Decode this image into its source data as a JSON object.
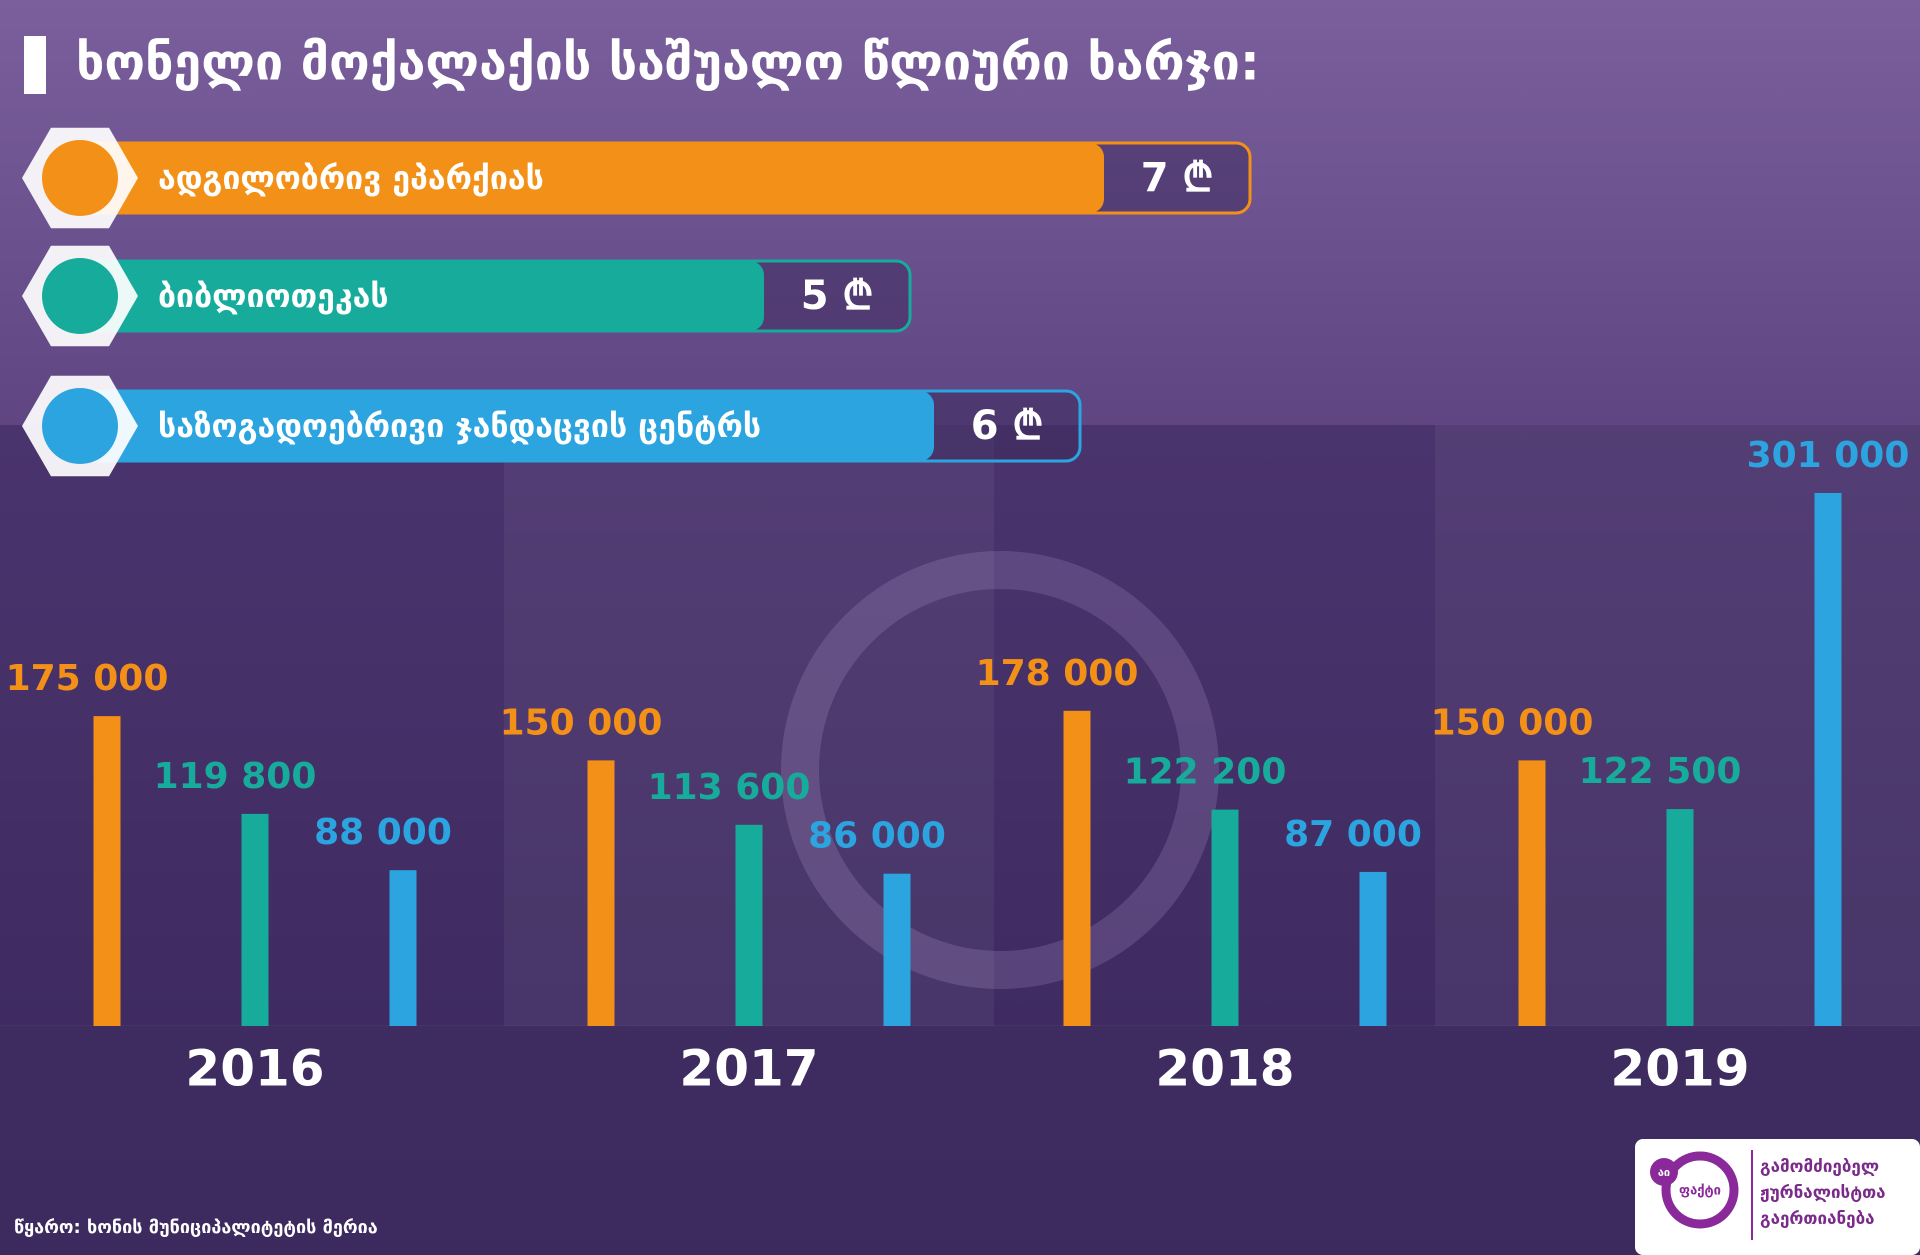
{
  "chart_data": {
    "type": "bar",
    "title": "ხონელი მოქალაქის საშუალო წლიური ხარჯი:",
    "categories": [
      "2016",
      "2017",
      "2018",
      "2019"
    ],
    "series": [
      {
        "name": "ადგილობრივ ეპარქიას",
        "color": "#f39018",
        "values": [
          175000,
          150000,
          178000,
          150000
        ],
        "value_labels": [
          "175 000",
          "150 000",
          "178 000",
          "150 000"
        ],
        "per_citizen": 7,
        "per_citizen_label": "7 ₾"
      },
      {
        "name": "ბიბლიოთეკას",
        "color": "#17ab9c",
        "values": [
          119800,
          113600,
          122200,
          122500
        ],
        "value_labels": [
          "119 800",
          "113 600",
          "122 200",
          "122 500"
        ],
        "per_citizen": 5,
        "per_citizen_label": "5 ₾"
      },
      {
        "name": "საზოგადოებრივი ჯანდაცვის ცენტრს",
        "color": "#2ba4e0",
        "values": [
          88000,
          86000,
          87000,
          301000
        ],
        "value_labels": [
          "88 000",
          "86 000",
          "87 000",
          "301 000"
        ],
        "per_citizen": 6,
        "per_citizen_label": "6 ₾"
      }
    ],
    "source": "წყარო: ხონის მუნიციპალიტეტის მერია",
    "logo": {
      "badge": "აი",
      "mark": "ფაქტი",
      "lines": [
        "გამომძიებელ",
        "ჟურნალისტთა",
        "გაერთიანება"
      ]
    }
  }
}
